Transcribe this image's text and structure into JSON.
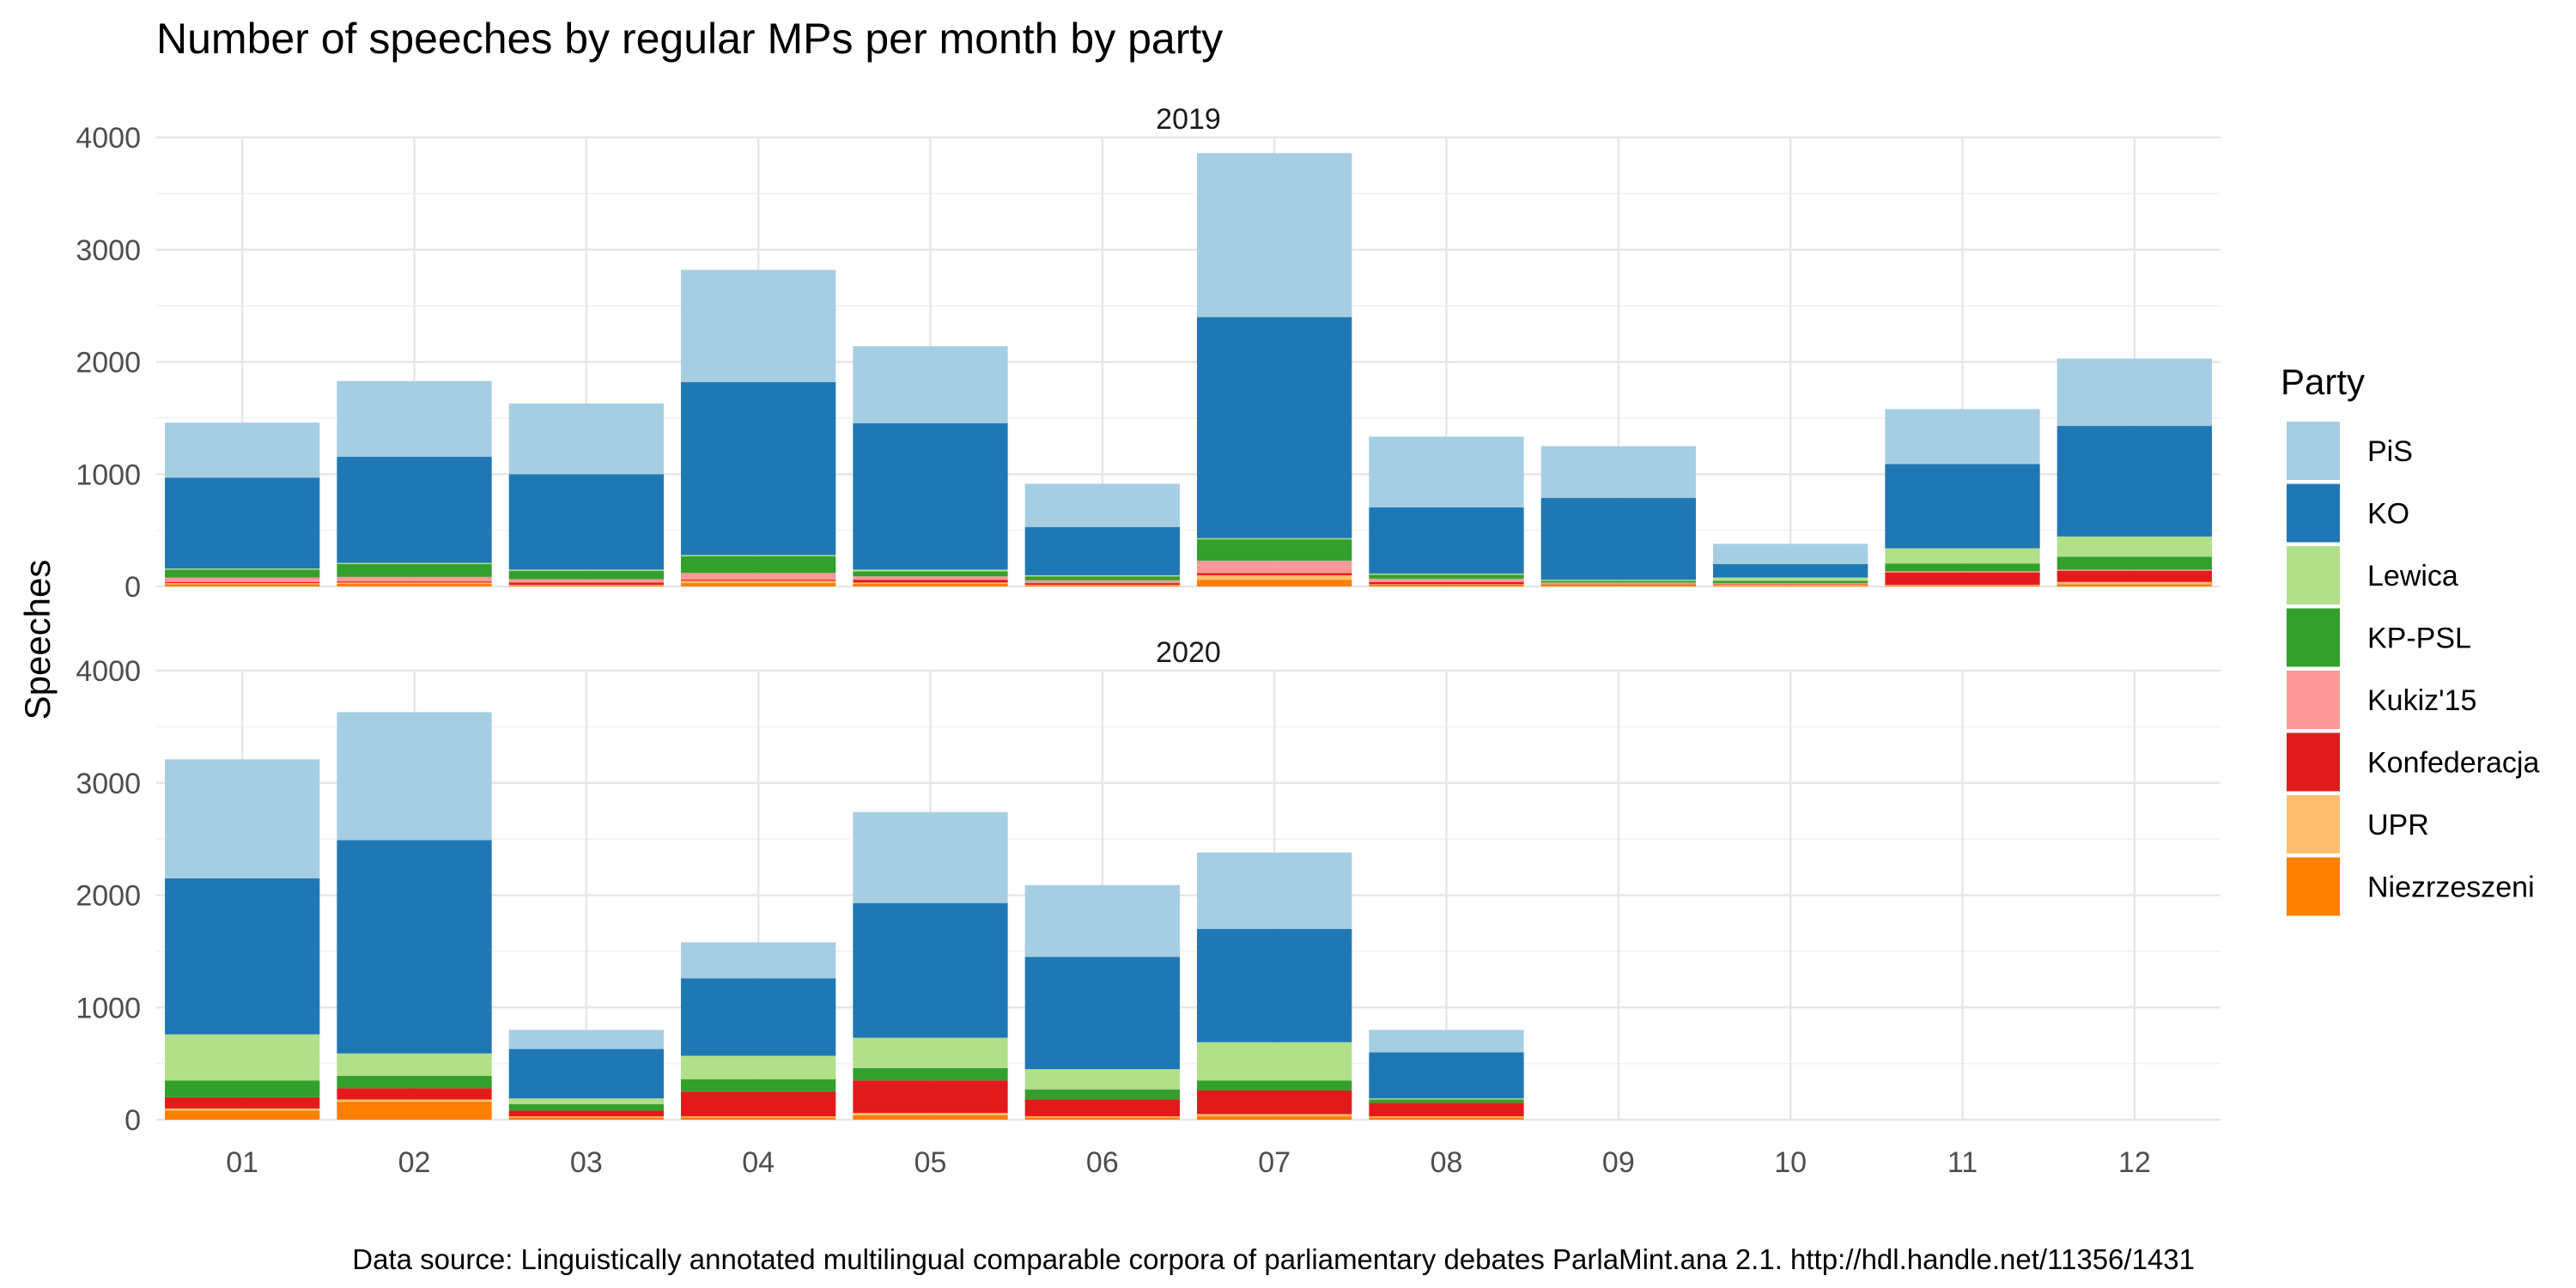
{
  "chart_data": {
    "type": "bar",
    "stacked": true,
    "title": "Number of speeches by regular MPs per month by party",
    "ylabel": "Speeches",
    "xlabel": "",
    "caption": "Data source: Linguistically annotated multilingual comparable corpora of parliamentary debates ParlaMint.ana 2.1. http://hdl.handle.net/11356/1431",
    "ylim": [
      0,
      4000
    ],
    "yticks": [
      0,
      1000,
      2000,
      3000,
      4000
    ],
    "categories": [
      "01",
      "02",
      "03",
      "04",
      "05",
      "06",
      "07",
      "08",
      "09",
      "10",
      "11",
      "12"
    ],
    "grid": true,
    "legend": {
      "title": "Party",
      "position": "right",
      "entries": [
        "PiS",
        "KO",
        "Lewica",
        "KP-PSL",
        "Kukiz'15",
        "Konfederacja",
        "UPR",
        "Niezrzeszeni"
      ]
    },
    "colors": {
      "PiS": "#a6cee3",
      "KO": "#1f78b4",
      "Lewica": "#b2df8a",
      "KP-PSL": "#33a02c",
      "Kukiz'15": "#fb9a99",
      "Konfederacja": "#e31a1c",
      "UPR": "#fdbf6f",
      "Niezrzeszeni": "#ff7f00"
    },
    "stack_order": [
      "Niezrzeszeni",
      "UPR",
      "Konfederacja",
      "Kukiz'15",
      "KP-PSL",
      "Lewica",
      "KO",
      "PiS"
    ],
    "panels": [
      {
        "label": "2019",
        "series": [
          {
            "name": "Niezrzeszeni",
            "values": [
              20,
              25,
              10,
              30,
              25,
              10,
              60,
              15,
              15,
              10,
              10,
              20
            ]
          },
          {
            "name": "UPR",
            "values": [
              10,
              10,
              5,
              20,
              10,
              5,
              40,
              5,
              5,
              5,
              5,
              20
            ]
          },
          {
            "name": "Konfederacja",
            "values": [
              10,
              10,
              20,
              10,
              25,
              15,
              20,
              20,
              5,
              5,
              110,
              100
            ]
          },
          {
            "name": "Kukiz'15",
            "values": [
              40,
              40,
              30,
              60,
              30,
              25,
              110,
              30,
              10,
              10,
              10,
              10
            ]
          },
          {
            "name": "KP-PSL",
            "values": [
              70,
              115,
              75,
              150,
              45,
              35,
              190,
              35,
              15,
              20,
              70,
              115
            ]
          },
          {
            "name": "Lewica",
            "values": [
              10,
              10,
              10,
              10,
              15,
              10,
              10,
              10,
              10,
              30,
              135,
              180
            ]
          },
          {
            "name": "KO",
            "values": [
              810,
              945,
              850,
              1540,
              1305,
              430,
              1970,
              590,
              730,
              120,
              750,
              985
            ]
          },
          {
            "name": "PiS",
            "values": [
              490,
              675,
              630,
              1000,
              685,
              385,
              1460,
              630,
              460,
              180,
              490,
              600
            ]
          }
        ]
      },
      {
        "label": "2020",
        "series": [
          {
            "name": "Niezrzeszeni",
            "values": [
              80,
              160,
              20,
              20,
              40,
              20,
              30,
              20,
              0,
              0,
              0,
              0
            ]
          },
          {
            "name": "UPR",
            "values": [
              20,
              20,
              10,
              10,
              20,
              10,
              20,
              10,
              0,
              0,
              0,
              0
            ]
          },
          {
            "name": "Konfederacja",
            "values": [
              100,
              100,
              50,
              220,
              290,
              150,
              210,
              120,
              0,
              0,
              0,
              0
            ]
          },
          {
            "name": "Kukiz'15",
            "values": [
              0,
              0,
              0,
              0,
              0,
              0,
              0,
              0,
              0,
              0,
              0,
              0
            ]
          },
          {
            "name": "KP-PSL",
            "values": [
              150,
              110,
              60,
              110,
              110,
              90,
              90,
              30,
              0,
              0,
              0,
              0
            ]
          },
          {
            "name": "Lewica",
            "values": [
              410,
              200,
              50,
              210,
              270,
              180,
              340,
              10,
              0,
              0,
              0,
              0
            ]
          },
          {
            "name": "KO",
            "values": [
              1390,
              1900,
              440,
              690,
              1200,
              1000,
              1010,
              410,
              0,
              0,
              0,
              0
            ]
          },
          {
            "name": "PiS",
            "values": [
              1060,
              1140,
              170,
              320,
              810,
              640,
              680,
              200,
              0,
              0,
              0,
              0
            ]
          }
        ]
      }
    ]
  }
}
